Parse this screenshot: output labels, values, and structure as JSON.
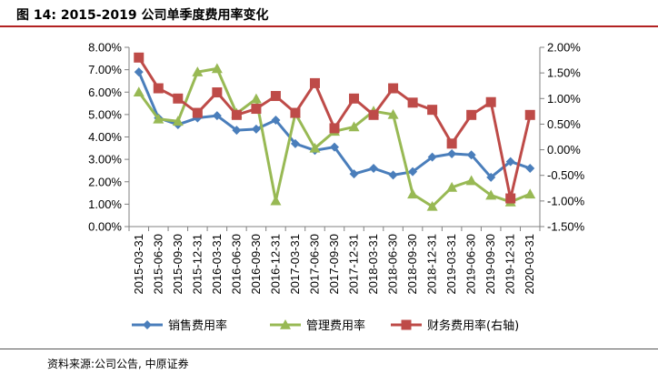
{
  "header": {
    "title": "图 14:  2015-2019 公司单季度费用率变化"
  },
  "footer": {
    "source": "资料来源:公司公告, 中原证券"
  },
  "chart_data": {
    "type": "line",
    "title": "2015-2019 公司单季度费用率变化",
    "categories": [
      "2015-03-31",
      "2015-06-30",
      "2015-09-30",
      "2015-12-31",
      "2016-03-31",
      "2016-06-30",
      "2016-09-30",
      "2016-12-31",
      "2017-03-31",
      "2017-06-30",
      "2017-09-30",
      "2017-12-31",
      "2018-03-31",
      "2018-06-30",
      "2018-09-30",
      "2018-12-31",
      "2019-03-31",
      "2019-06-30",
      "2019-09-30",
      "2019-12-31",
      "2020-03-31"
    ],
    "left_axis": {
      "ylim": [
        0,
        8
      ],
      "ticks": [
        "0.00%",
        "1.00%",
        "2.00%",
        "3.00%",
        "4.00%",
        "5.00%",
        "6.00%",
        "7.00%",
        "8.00%"
      ]
    },
    "right_axis": {
      "ylim": [
        -1.5,
        2.0
      ],
      "ticks": [
        "-1.50%",
        "-1.00%",
        "-0.50%",
        "0.00%",
        "0.50%",
        "1.00%",
        "1.50%",
        "2.00%"
      ]
    },
    "grid": false,
    "legend_position": "bottom",
    "series": [
      {
        "name": "销售费用率",
        "axis": "left",
        "color": "#4a7ebb",
        "marker": "diamond",
        "values": [
          6.9,
          4.85,
          4.55,
          4.85,
          4.95,
          4.3,
          4.35,
          4.75,
          3.7,
          3.4,
          3.55,
          2.35,
          2.6,
          2.3,
          2.45,
          3.1,
          3.25,
          3.2,
          2.2,
          2.9,
          2.6
        ]
      },
      {
        "name": "管理费用率",
        "axis": "left",
        "color": "#98b954",
        "marker": "triangle",
        "values": [
          6.0,
          4.8,
          4.7,
          6.9,
          7.05,
          5.05,
          5.7,
          1.15,
          5.05,
          3.5,
          4.25,
          4.45,
          5.15,
          5.0,
          1.45,
          0.9,
          1.75,
          2.05,
          1.4,
          1.1,
          1.45
        ]
      },
      {
        "name": "财务费用率(右轴)",
        "axis": "right",
        "color": "#be4b48",
        "marker": "square",
        "values": [
          1.8,
          1.2,
          1.0,
          0.72,
          1.12,
          0.68,
          0.8,
          1.05,
          0.72,
          1.3,
          0.42,
          1.0,
          0.68,
          1.2,
          0.92,
          0.78,
          0.12,
          0.68,
          0.93,
          -0.95,
          0.68
        ]
      }
    ]
  }
}
